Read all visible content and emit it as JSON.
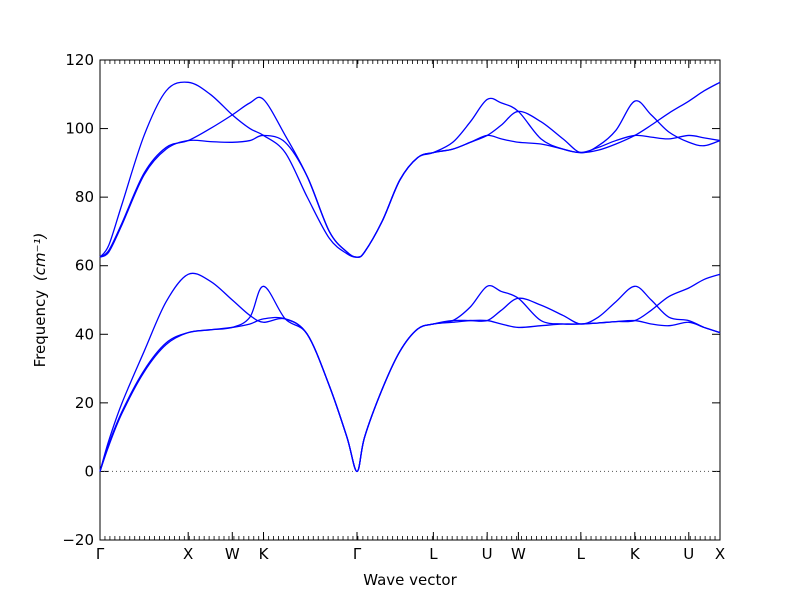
{
  "chart_data": {
    "type": "line",
    "title": "",
    "xlabel": "Wave vector",
    "ylabel": "Frequency",
    "ylabel_unit": "(cm⁻¹)",
    "ylim": [
      -20,
      120
    ],
    "yticks": [
      -20,
      0,
      20,
      40,
      60,
      80,
      100,
      120
    ],
    "grid": false,
    "line_color": "#0000ff",
    "zero_line": {
      "y": 0,
      "style": "dotted",
      "color": "#555555"
    },
    "kpoints": [
      {
        "label": "Γ",
        "x": 0.0
      },
      {
        "label": "X",
        "x": 1.0
      },
      {
        "label": "W",
        "x": 1.5
      },
      {
        "label": "K",
        "x": 1.854
      },
      {
        "label": "Γ",
        "x": 2.914
      },
      {
        "label": "L",
        "x": 3.78
      },
      {
        "label": "U",
        "x": 4.39
      },
      {
        "label": "W",
        "x": 4.744
      },
      {
        "label": "L",
        "x": 5.452
      },
      {
        "label": "K",
        "x": 6.064
      },
      {
        "label": "U",
        "x": 6.676
      },
      {
        "label": "X",
        "x": 7.03
      }
    ],
    "xlim": [
      0,
      7.03
    ],
    "x": [
      0.0,
      0.1,
      0.25,
      0.5,
      0.75,
      1.0,
      1.25,
      1.5,
      1.7,
      1.854,
      2.1,
      2.35,
      2.6,
      2.8,
      2.914,
      3.0,
      3.2,
      3.4,
      3.6,
      3.78,
      4.0,
      4.2,
      4.39,
      4.55,
      4.744,
      5.0,
      5.25,
      5.452,
      5.65,
      5.85,
      6.064,
      6.25,
      6.45,
      6.676,
      6.85,
      7.03
    ],
    "series": [
      {
        "name": "",
        "values": [
          0,
          9,
          20,
          35,
          49.5,
          57.5,
          55.5,
          50,
          45.5,
          43.5,
          44.5,
          40,
          25,
          10,
          0,
          10,
          24,
          35,
          41.5,
          43,
          44,
          44,
          44,
          47,
          50.5,
          48.5,
          45.5,
          43,
          45,
          49.5,
          54,
          50,
          45,
          44,
          42,
          40.5
        ]
      },
      {
        "name": "",
        "values": [
          0,
          8,
          17.5,
          29.5,
          37.5,
          40.5,
          41.3,
          42,
          45,
          54,
          44.5,
          40,
          25,
          10,
          0,
          10,
          24,
          35,
          41.5,
          43,
          44,
          48,
          54,
          52.5,
          50.5,
          44,
          43,
          43,
          43.3,
          43.7,
          44,
          47,
          51,
          53.5,
          56,
          57.5
        ]
      },
      {
        "name": "",
        "values": [
          0,
          7.5,
          17,
          29,
          37,
          40.5,
          41.3,
          42,
          43,
          44.5,
          44.5,
          40,
          25,
          10,
          0,
          10,
          24,
          35,
          41.5,
          43,
          43.5,
          44,
          44,
          43,
          42,
          42.5,
          43,
          43,
          43.3,
          43.7,
          44,
          43,
          42.5,
          43.5,
          42,
          40.5
        ]
      },
      {
        "name": "",
        "values": [
          62.5,
          66,
          78,
          98,
          111,
          113.5,
          110,
          104,
          100,
          98,
          93,
          80,
          68,
          63.5,
          62.5,
          64,
          73,
          85,
          91.5,
          93,
          94,
          96,
          98,
          101,
          105,
          102,
          97,
          93,
          95,
          99.5,
          108,
          104,
          99,
          96,
          95,
          96.5
        ]
      },
      {
        "name": "",
        "values": [
          62.5,
          64.5,
          72.5,
          87,
          94.5,
          96.5,
          100,
          104,
          107.5,
          108.5,
          98,
          86,
          70,
          64,
          62.5,
          64,
          73,
          85,
          91.5,
          93,
          96,
          102,
          108.5,
          107.5,
          105,
          97,
          94,
          93,
          93.7,
          95.5,
          98,
          101,
          104.5,
          108,
          111,
          113.5
        ]
      },
      {
        "name": "",
        "values": [
          62.5,
          64,
          72,
          86.5,
          94,
          96.5,
          96.2,
          96,
          96.5,
          98,
          96,
          86,
          70,
          64,
          62.5,
          64,
          73,
          85,
          91.5,
          93,
          94,
          96,
          98,
          97,
          96,
          95.5,
          94,
          93,
          94.5,
          96.5,
          98,
          97.5,
          97,
          98,
          97.3,
          96.5
        ]
      }
    ]
  }
}
